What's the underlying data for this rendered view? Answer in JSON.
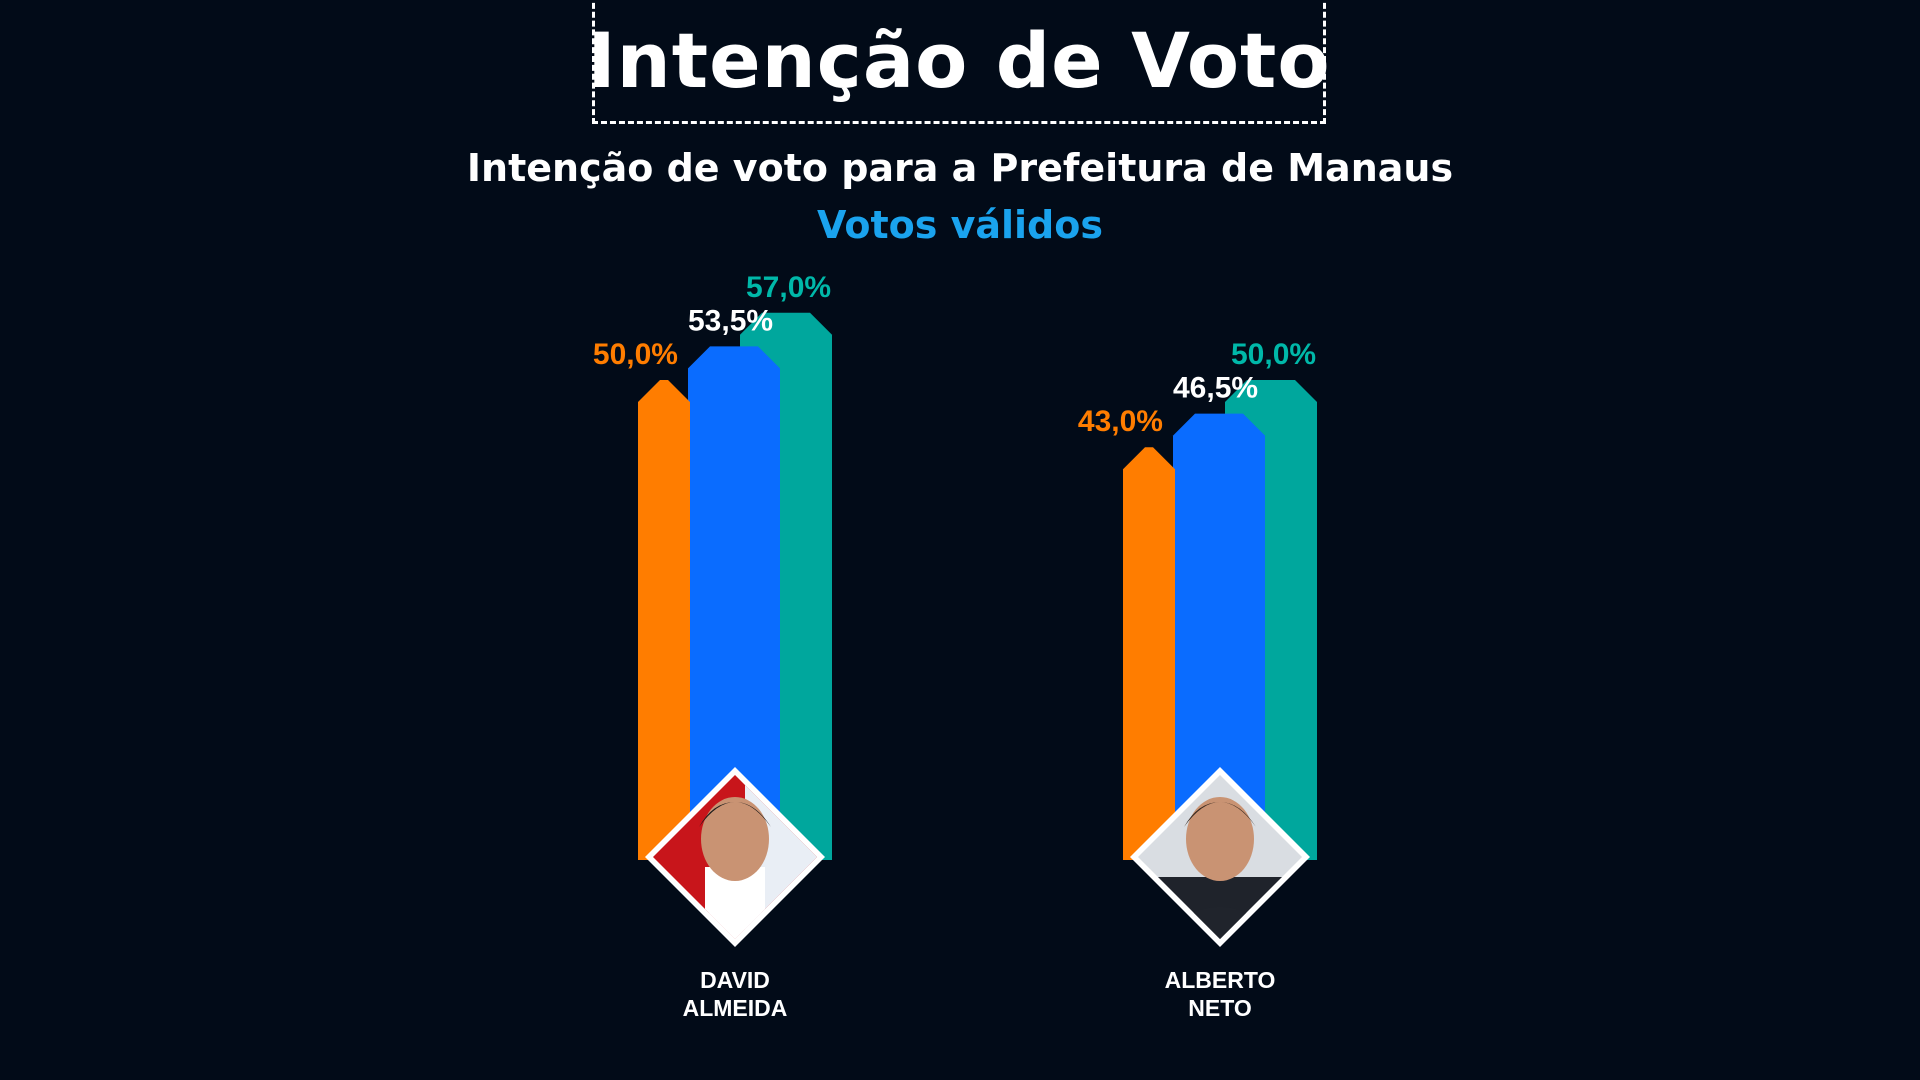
{
  "title": "Intenção de Voto",
  "subtitle": "Intenção de voto para a Prefeitura de Manaus",
  "note": "Votos válidos",
  "colors": {
    "background": "#020b18",
    "note": "#1aa3ee",
    "bar_low": "#ff7d00",
    "bar_mid": "#0a6cff",
    "bar_high": "#00a79d"
  },
  "chart_data": {
    "type": "bar",
    "title": "Intenção de voto para a Prefeitura de Manaus",
    "xlabel": "",
    "ylabel": "",
    "ylim": [
      0,
      60
    ],
    "grid": false,
    "legend": "none",
    "categories": [
      "DAVID ALMEIDA",
      "ALBERTO NETO"
    ],
    "category_lines": [
      [
        "DAVID",
        "ALMEIDA"
      ],
      [
        "ALBERTO",
        "NETO"
      ]
    ],
    "series": [
      {
        "values": [
          50.0,
          43.0
        ],
        "labels": [
          "50,0%",
          "43,0%"
        ],
        "color": "#ff7d00"
      },
      {
        "values": [
          53.5,
          46.5
        ],
        "labels": [
          "53,5%",
          "46,5%"
        ],
        "color": "#0a6cff"
      },
      {
        "values": [
          57.0,
          50.0
        ],
        "labels": [
          "57,0%",
          "50,0%"
        ],
        "color": "#00a79d"
      }
    ]
  }
}
